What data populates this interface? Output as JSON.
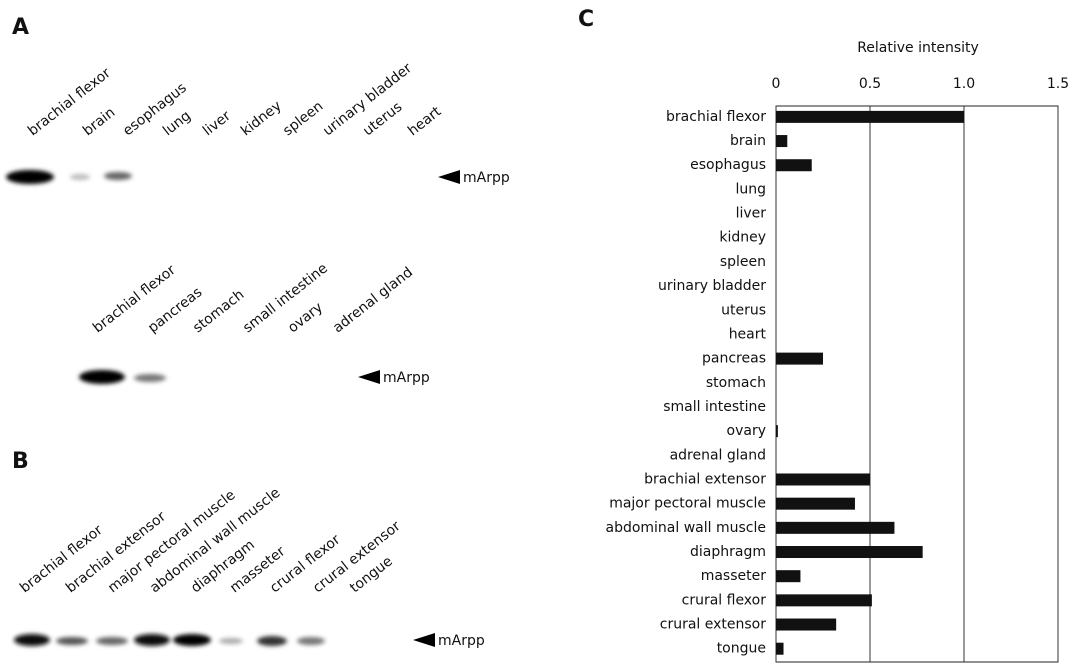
{
  "panels": {
    "A": {
      "letter": "A",
      "rows": [
        {
          "lanes": [
            "brachial flexor",
            "brain",
            "esophagus",
            "lung",
            "liver",
            "kidney",
            "spleen",
            "urinary bladder",
            "uterus",
            "heart"
          ],
          "marker": "mArpp"
        },
        {
          "lanes": [
            "brachial flexor",
            "pancreas",
            "stomach",
            "small intestine",
            "ovary",
            "adrenal gland"
          ],
          "marker": "mArpp"
        }
      ]
    },
    "B": {
      "letter": "B",
      "rows": [
        {
          "lanes": [
            "brachial flexor",
            "brachial extensor",
            "major pectoral muscle",
            "abdominal wall muscle",
            "diaphragm",
            "masseter",
            "crural flexor",
            "crural extensor",
            "tongue"
          ],
          "marker": "mArpp"
        }
      ]
    },
    "C": {
      "letter": "C"
    }
  },
  "chart_data": {
    "type": "hbar",
    "x_label": "Relative intensity",
    "categories": [
      "brachial flexor",
      "brain",
      "esophagus",
      "lung",
      "liver",
      "kidney",
      "spleen",
      "urinary bladder",
      "uterus",
      "heart",
      "pancreas",
      "stomach",
      "small intestine",
      "ovary",
      "adrenal gland",
      "brachial extensor",
      "major pectoral muscle",
      "abdominal wall muscle",
      "diaphragm",
      "masseter",
      "crural flexor",
      "crural extensor",
      "tongue"
    ],
    "values": [
      1.0,
      0.06,
      0.19,
      0,
      0,
      0,
      0,
      0,
      0,
      0,
      0.25,
      0,
      0,
      0.01,
      0,
      0.5,
      0.42,
      0.63,
      0.78,
      0.13,
      0.51,
      0.32,
      0.04
    ],
    "color": "#111111",
    "xlim": [
      0,
      1.5
    ],
    "xticks": [
      0,
      0.5,
      {
        "value": 1,
        "label": "1.0"
      },
      1.5
    ],
    "grid": true
  }
}
